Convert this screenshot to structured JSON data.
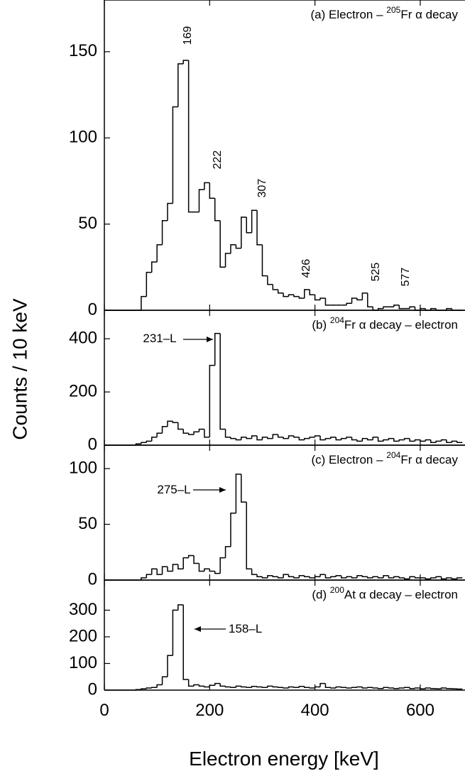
{
  "chart_data": [
    {
      "type": "histogram",
      "label": {
        "prefix": "(a) Electron – ",
        "superscript": "205",
        "suffix": "Fr α decay"
      },
      "peak_labels": [
        "169",
        "222",
        "307",
        "426",
        "525",
        "577"
      ],
      "bins": [
        0,
        10,
        20,
        30,
        40,
        50,
        60,
        70,
        80,
        90,
        100,
        110,
        120,
        130,
        140,
        150,
        160,
        170,
        180,
        190,
        200,
        210,
        220,
        230,
        240,
        250,
        260,
        270,
        280,
        290,
        300,
        310,
        320,
        330,
        340,
        350,
        360,
        370,
        380,
        390,
        400,
        410,
        420,
        430,
        440,
        450,
        460,
        470,
        480,
        490,
        500,
        510,
        520,
        530,
        540,
        550,
        560,
        570,
        580,
        590,
        600,
        610,
        620,
        630,
        640,
        650,
        660,
        670,
        680
      ],
      "values": [
        0,
        0,
        0,
        0,
        0,
        0,
        0,
        8,
        22,
        28,
        38,
        52,
        62,
        118,
        143,
        145,
        57,
        57,
        70,
        74,
        65,
        52,
        25,
        33,
        38,
        36,
        54,
        45,
        58,
        38,
        20,
        15,
        12,
        10,
        8,
        9,
        8,
        7,
        12,
        9,
        6,
        7,
        3,
        3,
        3,
        3,
        4,
        7,
        6,
        10,
        2,
        0,
        1,
        2,
        2,
        3,
        1,
        1,
        2,
        0,
        1,
        0,
        1,
        0,
        0,
        1,
        0,
        0
      ],
      "xlim": [
        0,
        685
      ],
      "xticks": [
        0,
        200,
        400,
        600
      ],
      "ylim": [
        0,
        180
      ],
      "yticks": [
        0,
        50,
        100,
        150
      ]
    },
    {
      "type": "histogram",
      "label": {
        "prefix": "(b) ",
        "superscript": "204",
        "suffix": "Fr α decay – electron"
      },
      "annotation": "231–L",
      "bins": [
        0,
        10,
        20,
        30,
        40,
        50,
        60,
        70,
        80,
        90,
        100,
        110,
        120,
        130,
        140,
        150,
        160,
        170,
        180,
        190,
        200,
        210,
        220,
        230,
        240,
        250,
        260,
        270,
        280,
        290,
        300,
        310,
        320,
        330,
        340,
        350,
        360,
        370,
        380,
        390,
        400,
        410,
        420,
        430,
        440,
        450,
        460,
        470,
        480,
        490,
        500,
        510,
        520,
        530,
        540,
        550,
        560,
        570,
        580,
        590,
        600,
        610,
        620,
        630,
        640,
        650,
        660,
        670,
        680
      ],
      "values": [
        0,
        0,
        0,
        0,
        0,
        0,
        5,
        10,
        15,
        30,
        45,
        70,
        90,
        85,
        60,
        45,
        40,
        50,
        60,
        30,
        300,
        420,
        60,
        30,
        25,
        20,
        30,
        25,
        35,
        20,
        30,
        25,
        40,
        30,
        25,
        35,
        30,
        20,
        25,
        30,
        35,
        20,
        25,
        30,
        20,
        25,
        30,
        20,
        15,
        25,
        20,
        30,
        15,
        20,
        25,
        15,
        20,
        25,
        15,
        20,
        15,
        20,
        10,
        15,
        20,
        10,
        15,
        10
      ],
      "xlim": [
        0,
        685
      ],
      "xticks": [
        0,
        200,
        400,
        600
      ],
      "ylim": [
        0,
        507
      ],
      "yticks": [
        0,
        200,
        400
      ]
    },
    {
      "type": "histogram",
      "label": {
        "prefix": "(c) Electron – ",
        "superscript": "204",
        "suffix": "Fr α decay"
      },
      "annotation": "275–L",
      "bins": [
        0,
        10,
        20,
        30,
        40,
        50,
        60,
        70,
        80,
        90,
        100,
        110,
        120,
        130,
        140,
        150,
        160,
        170,
        180,
        190,
        200,
        210,
        220,
        230,
        240,
        250,
        260,
        270,
        280,
        290,
        300,
        310,
        320,
        330,
        340,
        350,
        360,
        370,
        380,
        390,
        400,
        410,
        420,
        430,
        440,
        450,
        460,
        470,
        480,
        490,
        500,
        510,
        520,
        530,
        540,
        550,
        560,
        570,
        580,
        590,
        600,
        610,
        620,
        630,
        640,
        650,
        660,
        670,
        680
      ],
      "values": [
        0,
        0,
        0,
        0,
        0,
        0,
        0,
        2,
        5,
        10,
        5,
        12,
        8,
        14,
        10,
        20,
        22,
        15,
        8,
        10,
        8,
        6,
        20,
        30,
        60,
        95,
        70,
        10,
        5,
        3,
        2,
        4,
        3,
        2,
        5,
        3,
        2,
        4,
        3,
        2,
        3,
        5,
        2,
        3,
        4,
        2,
        3,
        2,
        4,
        3,
        2,
        3,
        2,
        4,
        2,
        3,
        2,
        1,
        3,
        2,
        2,
        1,
        2,
        3,
        1,
        2,
        1,
        2
      ],
      "xlim": [
        0,
        685
      ],
      "xticks": [
        0,
        200,
        400,
        600
      ],
      "ylim": [
        0,
        121
      ],
      "yticks": [
        0,
        50,
        100
      ]
    },
    {
      "type": "histogram",
      "label": {
        "prefix": "(d) ",
        "superscript": "200",
        "suffix": "At α decay – electron"
      },
      "annotation": "158–L",
      "bins": [
        0,
        10,
        20,
        30,
        40,
        50,
        60,
        70,
        80,
        90,
        100,
        110,
        120,
        130,
        140,
        150,
        160,
        170,
        180,
        190,
        200,
        210,
        220,
        230,
        240,
        250,
        260,
        270,
        280,
        290,
        300,
        310,
        320,
        330,
        340,
        350,
        360,
        370,
        380,
        390,
        400,
        410,
        420,
        430,
        440,
        450,
        460,
        470,
        480,
        490,
        500,
        510,
        520,
        530,
        540,
        550,
        560,
        570,
        580,
        590,
        600,
        610,
        620,
        630,
        640,
        650,
        660,
        670,
        680
      ],
      "values": [
        0,
        0,
        0,
        0,
        0,
        0,
        2,
        5,
        8,
        10,
        20,
        50,
        130,
        300,
        320,
        40,
        15,
        20,
        15,
        12,
        18,
        25,
        15,
        12,
        10,
        15,
        12,
        10,
        14,
        12,
        10,
        15,
        12,
        10,
        8,
        12,
        10,
        14,
        10,
        8,
        12,
        25,
        10,
        8,
        12,
        10,
        8,
        10,
        12,
        8,
        10,
        8,
        6,
        10,
        8,
        6,
        8,
        10,
        6,
        8,
        5,
        8,
        6,
        5,
        8,
        6,
        5,
        4
      ],
      "xlim": [
        0,
        685
      ],
      "xticks": [
        0,
        200,
        400,
        600
      ],
      "ylim": [
        0,
        413
      ],
      "yticks": [
        0,
        100,
        200,
        300
      ],
      "xlabel": "Electron energy [keV]",
      "ylabel": "Counts / 10 keV"
    }
  ]
}
